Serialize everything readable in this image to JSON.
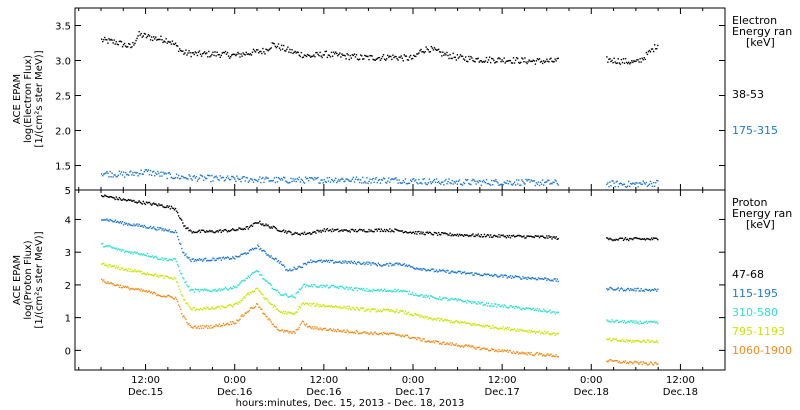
{
  "chart_data": [
    {
      "type": "scatter",
      "panel": "electron",
      "ylabel_lines": [
        "ACE EPAM",
        "log(Electron Flux)",
        "[1/(cm²s ster MeV)]"
      ],
      "legend_title": [
        "Electron",
        "Energy ran",
        "[keV]"
      ],
      "ylim": [
        1.15,
        3.75
      ],
      "yticks": [
        1.5,
        2.0,
        2.5,
        3.0,
        3.5
      ],
      "ytick_labels": [
        "1.5",
        "2.0",
        "2.5",
        "3.0",
        "3.5"
      ],
      "extra_tick_label": "5",
      "grid": false,
      "series": [
        {
          "name": "38-53",
          "color": "#000000",
          "points": [
            [
              0,
              3.3
            ],
            [
              2,
              3.27
            ],
            [
              4,
              3.2
            ],
            [
              5,
              3.38
            ],
            [
              7,
              3.33
            ],
            [
              9,
              3.3
            ],
            [
              10,
              3.22
            ],
            [
              11,
              3.12
            ],
            [
              13,
              3.1
            ],
            [
              16,
              3.1
            ],
            [
              18,
              3.08
            ],
            [
              20,
              3.12
            ],
            [
              22,
              3.15
            ],
            [
              23,
              3.24
            ],
            [
              24,
              3.2
            ],
            [
              26,
              3.12
            ],
            [
              28,
              3.07
            ],
            [
              30,
              3.1
            ],
            [
              33,
              3.07
            ],
            [
              35,
              3.05
            ],
            [
              37,
              3.05
            ],
            [
              39,
              3.06
            ],
            [
              40,
              3.05
            ],
            [
              42,
              3.04
            ],
            [
              43,
              3.15
            ],
            [
              44,
              3.18
            ],
            [
              46,
              3.1
            ],
            [
              48,
              3.05
            ],
            [
              50,
              3.03
            ],
            [
              52,
              3.02
            ],
            [
              54,
              3.02
            ],
            [
              56,
              3.01
            ],
            [
              58,
              3.0
            ],
            [
              60,
              3.0
            ],
            [
              61.5,
              3.0
            ]
          ],
          "points2": [
            [
              68,
              3.02
            ],
            [
              70,
              3.0
            ],
            [
              72,
              2.98
            ],
            [
              73,
              3.05
            ],
            [
              74,
              3.15
            ],
            [
              75,
              3.25
            ]
          ]
        },
        {
          "name": "175-315",
          "color": "#1f78d0",
          "points": [
            [
              0,
              1.4
            ],
            [
              3,
              1.38
            ],
            [
              6,
              1.42
            ],
            [
              8,
              1.38
            ],
            [
              10,
              1.35
            ],
            [
              13,
              1.33
            ],
            [
              16,
              1.32
            ],
            [
              20,
              1.31
            ],
            [
              24,
              1.3
            ],
            [
              28,
              1.3
            ],
            [
              32,
              1.31
            ],
            [
              36,
              1.3
            ],
            [
              40,
              1.3
            ],
            [
              44,
              1.28
            ],
            [
              48,
              1.27
            ],
            [
              52,
              1.27
            ],
            [
              56,
              1.27
            ],
            [
              60,
              1.26
            ],
            [
              61.5,
              1.26
            ]
          ],
          "points2": [
            [
              68,
              1.25
            ],
            [
              71,
              1.24
            ],
            [
              75,
              1.26
            ]
          ]
        }
      ]
    },
    {
      "type": "scatter",
      "panel": "proton",
      "ylabel_lines": [
        "ACE EPAM",
        "log(Proton Flux)",
        "[1/(cm²s ster MeV)]"
      ],
      "legend_title": [
        "Proton",
        "Energy ran",
        "[keV]"
      ],
      "ylim": [
        -0.6,
        4.9
      ],
      "yticks": [
        0,
        1,
        2,
        3,
        4
      ],
      "ytick_labels": [
        "0",
        "1",
        "2",
        "3",
        "4"
      ],
      "grid": false,
      "series": [
        {
          "name": "47-68",
          "color": "#000000",
          "points": [
            [
              0,
              4.75
            ],
            [
              3,
              4.62
            ],
            [
              6,
              4.52
            ],
            [
              8,
              4.45
            ],
            [
              10,
              4.35
            ],
            [
              11,
              3.85
            ],
            [
              12,
              3.65
            ],
            [
              15,
              3.65
            ],
            [
              18,
              3.7
            ],
            [
              20,
              3.78
            ],
            [
              21,
              3.95
            ],
            [
              22,
              3.85
            ],
            [
              24,
              3.7
            ],
            [
              26,
              3.58
            ],
            [
              28,
              3.6
            ],
            [
              30,
              3.7
            ],
            [
              32,
              3.68
            ],
            [
              35,
              3.68
            ],
            [
              38,
              3.7
            ],
            [
              40,
              3.68
            ],
            [
              42,
              3.62
            ],
            [
              45,
              3.58
            ],
            [
              48,
              3.55
            ],
            [
              52,
              3.52
            ],
            [
              56,
              3.5
            ],
            [
              60,
              3.48
            ],
            [
              61.5,
              3.45
            ]
          ],
          "points2": [
            [
              68,
              3.42
            ],
            [
              71,
              3.42
            ],
            [
              75,
              3.42
            ]
          ]
        },
        {
          "name": "115-195",
          "color": "#1f78d0",
          "points": [
            [
              0,
              4.05
            ],
            [
              3,
              3.9
            ],
            [
              6,
              3.8
            ],
            [
              8,
              3.72
            ],
            [
              10,
              3.65
            ],
            [
              11,
              3.0
            ],
            [
              12,
              2.78
            ],
            [
              15,
              2.8
            ],
            [
              18,
              2.85
            ],
            [
              20,
              3.05
            ],
            [
              21,
              3.2
            ],
            [
              22,
              3.0
            ],
            [
              24,
              2.72
            ],
            [
              25,
              2.45
            ],
            [
              27,
              2.6
            ],
            [
              28,
              2.75
            ],
            [
              32,
              2.72
            ],
            [
              36,
              2.68
            ],
            [
              38,
              2.62
            ],
            [
              40,
              2.68
            ],
            [
              42,
              2.55
            ],
            [
              45,
              2.45
            ],
            [
              48,
              2.4
            ],
            [
              52,
              2.32
            ],
            [
              56,
              2.25
            ],
            [
              60,
              2.2
            ],
            [
              61.5,
              2.15
            ]
          ],
          "points2": [
            [
              68,
              1.9
            ],
            [
              71,
              1.88
            ],
            [
              75,
              1.86
            ]
          ]
        },
        {
          "name": "310-580",
          "color": "#2fe0d0",
          "points": [
            [
              0,
              3.25
            ],
            [
              3,
              3.05
            ],
            [
              6,
              2.95
            ],
            [
              8,
              2.82
            ],
            [
              10,
              2.78
            ],
            [
              11,
              2.2
            ],
            [
              12,
              1.85
            ],
            [
              15,
              1.85
            ],
            [
              18,
              1.95
            ],
            [
              20,
              2.3
            ],
            [
              21,
              2.45
            ],
            [
              22,
              2.15
            ],
            [
              24,
              1.75
            ],
            [
              26,
              1.65
            ],
            [
              27,
              2.0
            ],
            [
              28,
              2.0
            ],
            [
              32,
              1.95
            ],
            [
              36,
              1.85
            ],
            [
              40,
              1.85
            ],
            [
              44,
              1.65
            ],
            [
              48,
              1.55
            ],
            [
              52,
              1.42
            ],
            [
              56,
              1.32
            ],
            [
              60,
              1.22
            ],
            [
              61.5,
              1.15
            ]
          ],
          "points2": [
            [
              68,
              0.92
            ],
            [
              71,
              0.88
            ],
            [
              75,
              0.86
            ]
          ]
        },
        {
          "name": "795-1193",
          "color": "#c8e600",
          "points": [
            [
              0,
              2.65
            ],
            [
              3,
              2.5
            ],
            [
              6,
              2.38
            ],
            [
              8,
              2.28
            ],
            [
              10,
              2.2
            ],
            [
              11,
              1.6
            ],
            [
              12,
              1.28
            ],
            [
              15,
              1.3
            ],
            [
              18,
              1.4
            ],
            [
              20,
              1.78
            ],
            [
              21,
              1.92
            ],
            [
              22,
              1.6
            ],
            [
              24,
              1.2
            ],
            [
              26,
              1.12
            ],
            [
              27,
              1.45
            ],
            [
              28,
              1.42
            ],
            [
              32,
              1.35
            ],
            [
              36,
              1.25
            ],
            [
              40,
              1.22
            ],
            [
              44,
              1.0
            ],
            [
              48,
              0.88
            ],
            [
              52,
              0.75
            ],
            [
              56,
              0.65
            ],
            [
              60,
              0.55
            ],
            [
              61.5,
              0.5
            ]
          ],
          "points2": [
            [
              68,
              0.35
            ],
            [
              71,
              0.3
            ],
            [
              75,
              0.3
            ]
          ]
        },
        {
          "name": "1060-1900",
          "color": "#f08c1a",
          "points": [
            [
              0,
              2.15
            ],
            [
              3,
              1.95
            ],
            [
              6,
              1.82
            ],
            [
              8,
              1.7
            ],
            [
              10,
              1.62
            ],
            [
              11,
              1.05
            ],
            [
              12,
              0.72
            ],
            [
              15,
              0.75
            ],
            [
              18,
              0.88
            ],
            [
              20,
              1.28
            ],
            [
              21,
              1.42
            ],
            [
              22,
              1.08
            ],
            [
              24,
              0.62
            ],
            [
              26,
              0.55
            ],
            [
              27,
              0.88
            ],
            [
              28,
              0.72
            ],
            [
              32,
              0.62
            ],
            [
              36,
              0.55
            ],
            [
              40,
              0.5
            ],
            [
              44,
              0.3
            ],
            [
              48,
              0.18
            ],
            [
              52,
              0.05
            ],
            [
              56,
              -0.05
            ],
            [
              60,
              -0.12
            ],
            [
              61.5,
              -0.15
            ]
          ],
          "points2": [
            [
              68,
              -0.3
            ],
            [
              71,
              -0.35
            ],
            [
              75,
              -0.4
            ]
          ]
        }
      ]
    }
  ],
  "x_axis": {
    "xlim": [
      -3.5,
      84
    ],
    "ticks": [
      {
        "x": 6,
        "label": "12:00",
        "day": "Dec.15"
      },
      {
        "x": 18,
        "label": "0:00",
        "day": "Dec.16"
      },
      {
        "x": 30,
        "label": "12:00",
        "day": "Dec.16"
      },
      {
        "x": 42,
        "label": "0:00",
        "day": "Dec.17"
      },
      {
        "x": 54,
        "label": "12:00",
        "day": "Dec.17"
      },
      {
        "x": 66,
        "label": "0:00",
        "day": "Dec.18"
      },
      {
        "x": 78,
        "label": "12:00",
        "day": "Dec.18"
      }
    ],
    "xlabel": "hours:minutes, Dec. 15, 2013 - Dec. 18, 2013"
  }
}
